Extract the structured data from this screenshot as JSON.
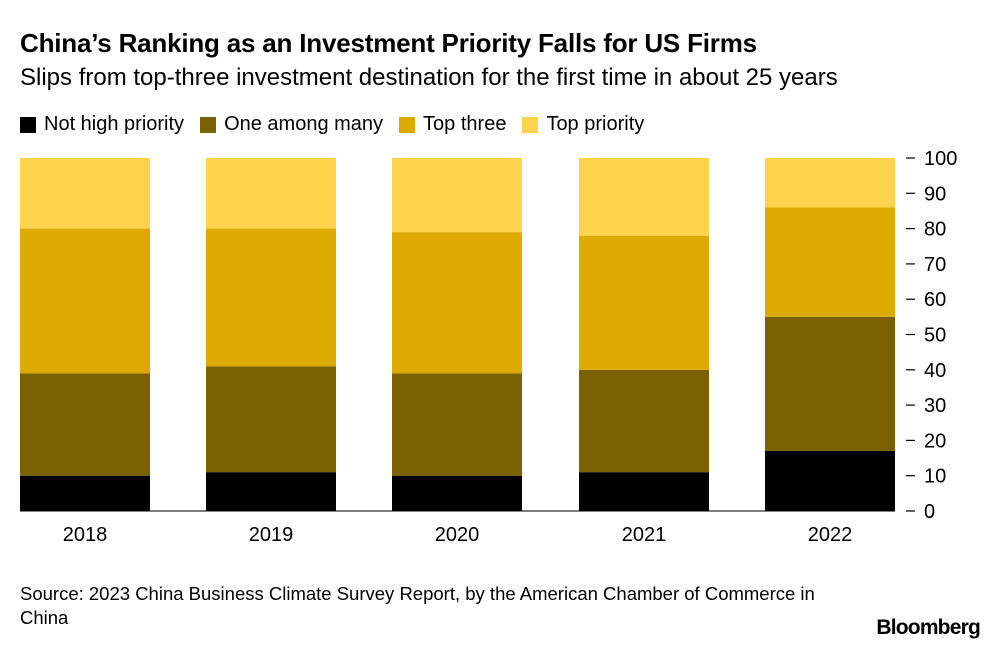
{
  "header": {
    "title": "China’s Ranking as an Investment Priority Falls for US Firms",
    "subtitle": "Slips from top-three investment destination for the first time in about 25 years"
  },
  "footer": {
    "source": "Source: 2023 China Business Climate Survey Report, by the American Chamber of Commerce in China",
    "logo": "Bloomberg"
  },
  "chart_data": {
    "type": "bar",
    "stacked": true,
    "categories": [
      "2018",
      "2019",
      "2020",
      "2021",
      "2022"
    ],
    "series": [
      {
        "name": "Not high priority",
        "color": "#000000",
        "values": [
          10,
          11,
          10,
          11,
          17
        ]
      },
      {
        "name": "One among many",
        "color": "#7a6000",
        "values": [
          29,
          30,
          29,
          29,
          38
        ]
      },
      {
        "name": "Top three",
        "color": "#dcaa00",
        "values": [
          41,
          39,
          40,
          38,
          31
        ]
      },
      {
        "name": "Top priority",
        "color": "#fdd24c",
        "values": [
          20,
          20,
          21,
          22,
          14
        ]
      }
    ],
    "ylim": [
      0,
      100
    ],
    "yticks": [
      0,
      10,
      20,
      30,
      40,
      50,
      60,
      70,
      80,
      90,
      100
    ],
    "y_axis_side": "right",
    "legend_position": "top-left",
    "grid": false
  }
}
